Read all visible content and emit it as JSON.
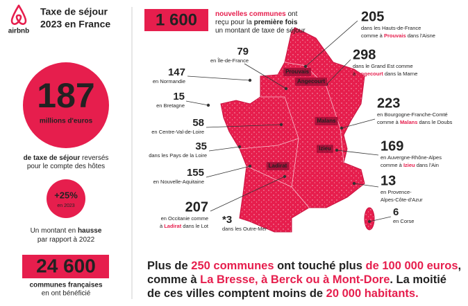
{
  "brand": "airbnb",
  "title": [
    "Taxe de séjour",
    "2023 en France"
  ],
  "total": {
    "value": "187",
    "unit": "millions d'euros"
  },
  "total_caption": [
    [
      {
        "text": "de taxe de séjour",
        "bold": true
      },
      {
        "text": " reversés"
      }
    ],
    [
      {
        "text": "pour le compte des hôtes"
      }
    ]
  ],
  "growth": {
    "value": "+25%",
    "sub": "en 2023"
  },
  "growth_caption": [
    [
      {
        "text": "Un montant en "
      },
      {
        "text": "hausse",
        "bold": true
      }
    ],
    [
      {
        "text": "par rapport à 2022"
      }
    ]
  ],
  "communes": {
    "value": "24 600",
    "caption": [
      "communes françaises",
      "en ont bénéficié"
    ]
  },
  "new_communes": {
    "value": "1 600",
    "text": [
      [
        {
          "text": "nouvelles communes",
          "bold": true,
          "red": true
        },
        {
          "text": " ont"
        }
      ],
      [
        {
          "text": "reçu pour la "
        },
        {
          "text": "première fois",
          "bold": true
        }
      ],
      [
        {
          "text": "un montant de taxe de séjour"
        }
      ]
    ]
  },
  "regions": [
    {
      "value": "79",
      "lines": [
        [
          {
            "text": "en Île-de-France"
          }
        ]
      ]
    },
    {
      "value": "147",
      "lines": [
        [
          {
            "text": "en Normandie"
          }
        ]
      ]
    },
    {
      "value": "15",
      "lines": [
        [
          {
            "text": "en Bretagne"
          }
        ]
      ]
    },
    {
      "value": "58",
      "lines": [
        [
          {
            "text": "en Centre-Val-de-Loire"
          }
        ]
      ]
    },
    {
      "value": "35",
      "lines": [
        [
          {
            "text": "dans les Pays de la Loire"
          }
        ]
      ]
    },
    {
      "value": "155",
      "lines": [
        [
          {
            "text": "en Nouvelle-Aquitaine"
          }
        ]
      ]
    },
    {
      "value": "207",
      "lines": [
        [
          {
            "text": "en Occitanie comme"
          }
        ],
        [
          {
            "text": "à "
          },
          {
            "text": "Ladirat",
            "bold": true,
            "red": true
          },
          {
            "text": " dans le Lot"
          }
        ]
      ]
    },
    {
      "value": "*3",
      "lines": [
        [
          {
            "text": "dans les Outre-Mer"
          }
        ]
      ]
    },
    {
      "value": "205",
      "lines": [
        [
          {
            "text": "dans les Hauts-de-France"
          }
        ],
        [
          {
            "text": "comme à "
          },
          {
            "text": "Prouvais",
            "bold": true,
            "red": true
          },
          {
            "text": " dans l'Aisne"
          }
        ]
      ]
    },
    {
      "value": "298",
      "lines": [
        [
          {
            "text": "dans le Grand Est comme"
          }
        ],
        [
          {
            "text": "à "
          },
          {
            "text": "Angecourt",
            "bold": true,
            "red": true
          },
          {
            "text": " dans la Marne"
          }
        ]
      ]
    },
    {
      "value": "223",
      "lines": [
        [
          {
            "text": "en Bourgogne-Franche-Comté"
          }
        ],
        [
          {
            "text": "comme à "
          },
          {
            "text": "Malans",
            "bold": true,
            "red": true
          },
          {
            "text": " dans le Doubs"
          }
        ]
      ]
    },
    {
      "value": "169",
      "lines": [
        [
          {
            "text": "en Auvergne-Rhône-Alpes"
          }
        ],
        [
          {
            "text": "comme à "
          },
          {
            "text": "Izieu",
            "bold": true,
            "red": true
          },
          {
            "text": " dans l'Ain"
          }
        ]
      ]
    },
    {
      "value": "13",
      "lines": [
        [
          {
            "text": "en Provence-"
          }
        ],
        [
          {
            "text": "Alpes-Côte-d'Azur"
          }
        ]
      ]
    },
    {
      "value": "6",
      "lines": [
        [
          {
            "text": "en Corse"
          }
        ]
      ]
    }
  ],
  "town_labels": [
    "Prouvais",
    "Angecourt",
    "Malans",
    "Izieu",
    "Ladirat"
  ],
  "footer": [
    [
      {
        "text": "Plus de "
      },
      {
        "text": "250 communes",
        "red": true
      },
      {
        "text": " ont touché plus "
      },
      {
        "text": "de 100 000 euros",
        "red": true
      },
      {
        "text": ","
      }
    ],
    [
      {
        "text": "comme à "
      },
      {
        "text": "La Bresse, à Berck ou à Mont-Dore",
        "red": true
      },
      {
        "text": ". La moitié"
      }
    ],
    [
      {
        "text": "de ces villes comptent moins de "
      },
      {
        "text": "20 000 habitants.",
        "red": true
      }
    ]
  ]
}
